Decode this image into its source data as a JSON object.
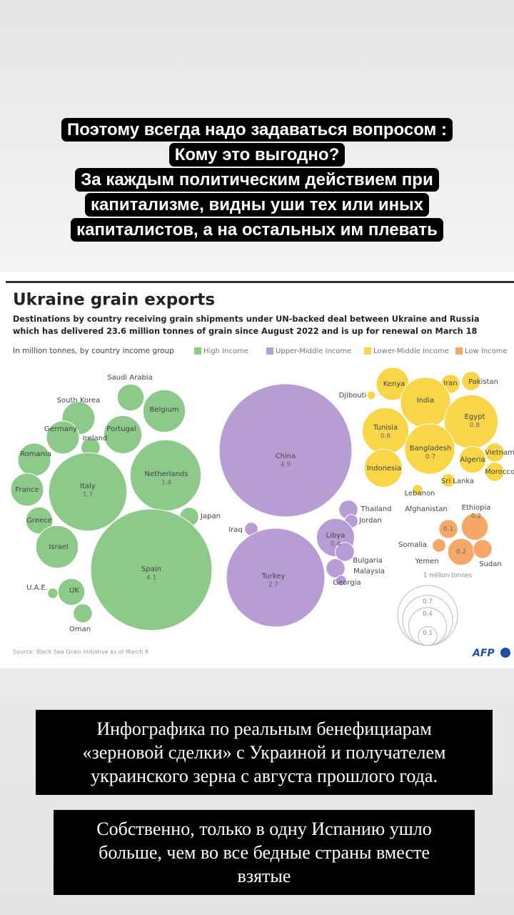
{
  "caption_top": {
    "lines": [
      "Поэтому всегда надо задаваться вопросом :",
      "Кому это выгодно?",
      "За каждым политическим действием при",
      "капитализме, видны уши тех или иных",
      "капиталистов, а на остальных им плевать"
    ]
  },
  "chart_data": {
    "type": "bubble",
    "title": "Ukraine grain exports",
    "subtitle": [
      "Destinations by country receiving grain shipments under UN-backed deal between Ukraine and Russia",
      "which has delivered 23.6 million tonnes of grain since August 2022 and is up for renewal on March 18"
    ],
    "legend_title": "In million tonnes, by country income group",
    "watermark": "AFP",
    "series": [
      {
        "name": "High Income",
        "color": "#8dca8a",
        "points": [
          {
            "name": "Saudi Arabia",
            "value": 0.2
          },
          {
            "name": "South Korea",
            "value": 0.3
          },
          {
            "name": "Belgium",
            "value": 0.5
          },
          {
            "name": "Germany",
            "value": 0.3
          },
          {
            "name": "Portugal",
            "value": 0.4
          },
          {
            "name": "Ireland",
            "value": 0.1
          },
          {
            "name": "Romania",
            "value": 0.3
          },
          {
            "name": "Italy",
            "value": 1.7,
            "value_label": "1.7"
          },
          {
            "name": "Netherlands",
            "value": 1.4,
            "value_label": "1.4"
          },
          {
            "name": "France",
            "value": 0.3
          },
          {
            "name": "Greece",
            "value": 0.2
          },
          {
            "name": "Japan",
            "value": 0.1
          },
          {
            "name": "Israel",
            "value": 0.5
          },
          {
            "name": "Spain",
            "value": 4.1,
            "value_label": "4.1"
          },
          {
            "name": "U.A.E.",
            "value": 0.03
          },
          {
            "name": "UK",
            "value": 0.2
          },
          {
            "name": "Oman",
            "value": 0.1
          }
        ]
      },
      {
        "name": "Upper-Middle Income",
        "color": "#b89dd4",
        "points": [
          {
            "name": "China",
            "value": 4.9,
            "value_label": "4.9"
          },
          {
            "name": "Thailand",
            "value": 0.1
          },
          {
            "name": "Jordan",
            "value": 0.05
          },
          {
            "name": "Iraq",
            "value": 0.05
          },
          {
            "name": "Libya",
            "value": 0.4,
            "value_label": "0.4"
          },
          {
            "name": "Turkey",
            "value": 2.7,
            "value_label": "2.7"
          },
          {
            "name": "Bulgaria",
            "value": 0.1
          },
          {
            "name": "Malaysia",
            "value": 0.1
          },
          {
            "name": "Georgia",
            "value": 0.03
          }
        ]
      },
      {
        "name": "Lower-Middle Income",
        "color": "#f8d647",
        "points": [
          {
            "name": "Djibouti",
            "value": 0.02
          },
          {
            "name": "Kenya",
            "value": 0.3
          },
          {
            "name": "Iran",
            "value": 0.1
          },
          {
            "name": "Pakistan",
            "value": 0.1
          },
          {
            "name": "India",
            "value": 0.7
          },
          {
            "name": "Egypt",
            "value": 0.8,
            "value_label": "0.8"
          },
          {
            "name": "Tunisia",
            "value": 0.6,
            "value_label": "0.6"
          },
          {
            "name": "Bangladesh",
            "value": 0.7,
            "value_label": "0.7"
          },
          {
            "name": "Indonesia",
            "value": 0.4
          },
          {
            "name": "Algeria",
            "value": 0.2
          },
          {
            "name": "Vietnam",
            "value": 0.1
          },
          {
            "name": "Morocco",
            "value": 0.1
          },
          {
            "name": "Sri Lanka",
            "value": 0.05
          },
          {
            "name": "Lebanon",
            "value": 0.03
          }
        ]
      },
      {
        "name": "Low Income",
        "color": "#f5a868",
        "points": [
          {
            "name": "Afghanistan",
            "value": 0.1,
            "value_label": "0.1"
          },
          {
            "name": "Ethiopia",
            "value": 0.2,
            "value_label": "0.2"
          },
          {
            "name": "Somalia",
            "value": 0.05
          },
          {
            "name": "Yemen",
            "value": 0.2,
            "value_label": "0.2"
          },
          {
            "name": "Sudan",
            "value": 0.1
          }
        ]
      }
    ],
    "size_legend": [
      {
        "value": 1,
        "label": "1 million tonnes"
      },
      0.7,
      0.4,
      0.1
    ],
    "source": "Source: Black Sea Grain Initiative as of March 8",
    "logo": "AFP"
  },
  "caption_bottom": [
    {
      "lines": [
        "Инфографика по реальным бенефициарам",
        "«зерновой сделки» с Украиной и получателем",
        "украинского зерна с августа прошлого года."
      ]
    },
    {
      "lines": [
        "Собственно, только в одну Испанию ушло",
        "больше, чем во все бедные страны вместе",
        "взятые"
      ]
    }
  ]
}
